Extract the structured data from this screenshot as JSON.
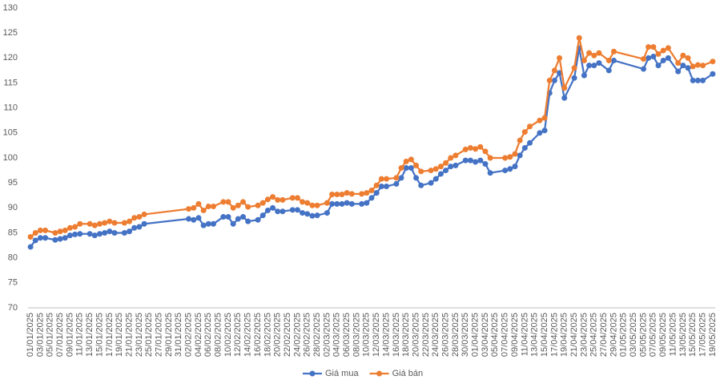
{
  "chart_data": {
    "type": "line",
    "categories": [
      "01/01/2025",
      null,
      "03/01/2025",
      null,
      "05/01/2025",
      null,
      "07/01/2025",
      null,
      "09/01/2025",
      null,
      "11/01/2025",
      null,
      "13/01/2025",
      null,
      "15/01/2025",
      null,
      "17/01/2025",
      null,
      "19/01/2025",
      null,
      "21/01/2025",
      null,
      "23/01/2025",
      null,
      "25/01/2025",
      null,
      "27/01/2025",
      null,
      "29/01/2025",
      null,
      "31/01/2025",
      null,
      "02/02/2025",
      null,
      "04/02/2025",
      null,
      "06/02/2025",
      null,
      "08/02/2025",
      null,
      "10/02/2025",
      null,
      "12/02/2025",
      null,
      "14/02/2025",
      null,
      "16/02/2025",
      null,
      "18/02/2025",
      null,
      "20/02/2025",
      null,
      "22/02/2025",
      null,
      "24/02/2025",
      null,
      "26/02/2025",
      null,
      "28/02/2025",
      null,
      "02/03/2025",
      null,
      "04/03/2025",
      null,
      "06/03/2025",
      null,
      "08/03/2025",
      null,
      "10/03/2025",
      null,
      "12/03/2025",
      null,
      "14/03/2025",
      null,
      "16/03/2025",
      null,
      "18/03/2025",
      null,
      "20/03/2025",
      null,
      "22/03/2025",
      null,
      "24/03/2025",
      null,
      "26/03/2025",
      null,
      "28/03/2025",
      null,
      "30/03/2025",
      null,
      "01/04/2025",
      null,
      "03/04/2025",
      null,
      "05/04/2025",
      null,
      "07/04/2025",
      null,
      "09/04/2025",
      null,
      "11/04/2025",
      null,
      "13/04/2025",
      null,
      "15/04/2025",
      null,
      "17/04/2025",
      null,
      "19/04/2025",
      null,
      "21/04/2025",
      null,
      "23/04/2025",
      null,
      "25/04/2025",
      null,
      "27/04/2025",
      null,
      "29/04/2025",
      null,
      "01/05/2025",
      null,
      "03/05/2025",
      null,
      "05/05/2025",
      null,
      "07/05/2025",
      null,
      "09/05/2025",
      null,
      "11/05/2025",
      null,
      "13/05/2025",
      null,
      "15/05/2025",
      null,
      "17/05/2025",
      null,
      "19/05/2025"
    ],
    "series": [
      {
        "name": "Giá mua",
        "color": "#4472c4",
        "values": [
          82.2,
          83.5,
          84.0,
          84.0,
          null,
          83.6,
          83.8,
          84.0,
          84.5,
          84.7,
          84.8,
          null,
          84.8,
          84.5,
          84.8,
          85.0,
          85.3,
          85.0,
          null,
          85.0,
          85.3,
          86.0,
          86.2,
          86.8,
          null,
          null,
          null,
          null,
          null,
          null,
          null,
          null,
          87.8,
          87.6,
          88.0,
          86.5,
          86.8,
          86.8,
          null,
          88.2,
          88.2,
          86.8,
          87.8,
          88.2,
          87.3,
          null,
          87.6,
          88.5,
          89.5,
          90.0,
          89.3,
          89.3,
          null,
          89.6,
          89.6,
          89.0,
          88.8,
          88.4,
          88.5,
          null,
          89.0,
          90.8,
          90.8,
          90.8,
          91.0,
          90.8,
          null,
          90.8,
          91.0,
          92.0,
          93.0,
          94.3,
          94.3,
          null,
          94.8,
          96.0,
          98.0,
          98.0,
          96.0,
          94.5,
          null,
          95.0,
          95.8,
          96.8,
          97.5,
          98.3,
          98.5,
          null,
          99.5,
          99.5,
          99.2,
          99.5,
          98.8,
          97.0,
          null,
          null,
          97.5,
          97.8,
          98.3,
          100.5,
          102.0,
          103.0,
          null,
          105.0,
          105.5,
          113.0,
          115.5,
          117.0,
          112.0,
          null,
          116.0,
          122.0,
          116.5,
          118.5,
          118.5,
          119.0,
          null,
          117.5,
          119.5,
          null,
          null,
          null,
          null,
          null,
          117.8,
          120.0,
          120.3,
          118.5,
          119.5,
          120.0,
          null,
          117.3,
          118.5,
          118.0,
          115.5,
          115.5,
          115.5,
          null,
          116.8
        ]
      },
      {
        "name": "Giá bán",
        "color": "#ed7d31",
        "values": [
          84.2,
          85.0,
          85.5,
          85.5,
          null,
          85.0,
          85.3,
          85.5,
          86.0,
          86.2,
          86.8,
          null,
          86.8,
          86.5,
          86.8,
          87.0,
          87.3,
          87.0,
          null,
          87.0,
          87.3,
          88.0,
          88.2,
          88.7,
          null,
          null,
          null,
          null,
          null,
          null,
          null,
          null,
          89.8,
          90.0,
          90.8,
          89.5,
          90.3,
          90.3,
          null,
          91.2,
          91.2,
          90.0,
          90.5,
          91.2,
          90.2,
          null,
          90.5,
          91.0,
          91.7,
          92.2,
          91.6,
          91.6,
          null,
          92.0,
          92.0,
          91.2,
          91.0,
          90.5,
          90.5,
          null,
          91.0,
          92.7,
          92.7,
          92.7,
          93.0,
          92.8,
          null,
          92.8,
          93.0,
          93.5,
          94.5,
          95.8,
          95.8,
          null,
          96.0,
          98.0,
          99.3,
          99.7,
          98.5,
          97.3,
          null,
          97.5,
          97.8,
          98.3,
          99.0,
          100.0,
          100.5,
          null,
          101.7,
          102.0,
          101.8,
          102.2,
          101.3,
          100.0,
          null,
          null,
          100.0,
          100.2,
          100.8,
          103.5,
          105.2,
          106.3,
          null,
          107.5,
          108.0,
          115.5,
          117.5,
          120.0,
          114.0,
          null,
          118.0,
          124.0,
          119.5,
          121.0,
          120.5,
          121.0,
          null,
          119.5,
          121.3,
          null,
          null,
          null,
          null,
          null,
          119.8,
          122.2,
          122.2,
          120.8,
          121.5,
          122.0,
          null,
          119.0,
          120.5,
          120.0,
          118.3,
          118.6,
          118.5,
          null,
          119.3
        ]
      }
    ],
    "ylim": [
      70,
      130
    ],
    "yticks": [
      70,
      75,
      80,
      85,
      90,
      95,
      100,
      105,
      110,
      115,
      120,
      125,
      130
    ],
    "grid": false,
    "legend": "bottom"
  }
}
